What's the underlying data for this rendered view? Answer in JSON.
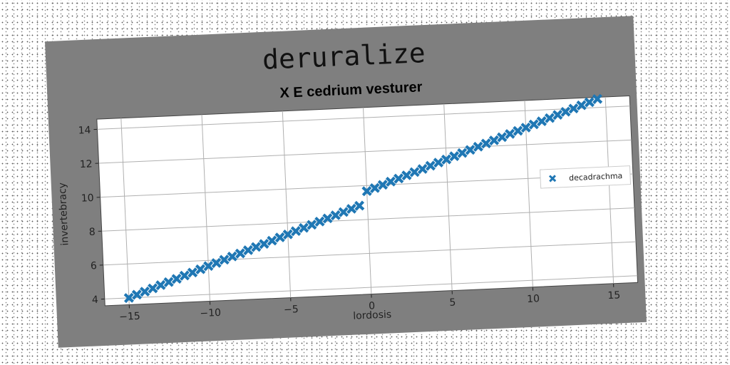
{
  "figure": {
    "suptitle": "deruralize",
    "background_color": "#7f7f7f",
    "plot_background_color": "#ffffff"
  },
  "chart_data": {
    "type": "scatter",
    "title": "X E cedrium vesturer",
    "xlabel": "lordosis",
    "ylabel": "invertebracy",
    "xlim": [
      -16.5,
      16.5
    ],
    "ylim": [
      3.6,
      14.6
    ],
    "xticks": [
      -15,
      -10,
      -5,
      0,
      5,
      10,
      15
    ],
    "xtick_labels": [
      "−15",
      "−10",
      "−5",
      "0",
      "5",
      "10",
      "15"
    ],
    "yticks": [
      4,
      6,
      8,
      10,
      12,
      14
    ],
    "ytick_labels": [
      "4",
      "6",
      "8",
      "10",
      "12",
      "14"
    ],
    "grid": true,
    "legend_position": "center-right",
    "marker": "X",
    "series": [
      {
        "name": "decadrachma",
        "color": "#1f77b4",
        "points_note": "",
        "x": [
          -15.0,
          -14.5,
          -14.0,
          -13.5,
          -13.0,
          -12.5,
          -12.0,
          -11.5,
          -11.0,
          -10.5,
          -10.0,
          -9.5,
          -9.0,
          -8.5,
          -8.0,
          -7.5,
          -7.0,
          -6.5,
          -6.0,
          -5.5,
          -5.0,
          -4.5,
          -4.0,
          -3.5,
          -3.0,
          -2.5,
          -2.0,
          -1.5,
          -1.0,
          -0.5,
          0.0,
          0.5,
          1.0,
          1.5,
          2.0,
          2.5,
          3.0,
          3.5,
          4.0,
          4.5,
          5.0,
          5.5,
          6.0,
          6.5,
          7.0,
          7.5,
          8.0,
          8.5,
          9.0,
          9.5,
          10.0,
          10.5,
          11.0,
          11.5,
          12.0,
          12.5,
          13.0,
          13.5,
          14.0,
          14.5
        ],
        "y": [
          4.0,
          4.17,
          4.33,
          4.5,
          4.67,
          4.83,
          5.0,
          5.17,
          5.33,
          5.5,
          5.67,
          5.83,
          6.0,
          6.17,
          6.33,
          6.5,
          6.67,
          6.83,
          7.0,
          7.17,
          7.33,
          7.5,
          7.67,
          7.83,
          8.0,
          8.17,
          8.33,
          8.5,
          8.67,
          8.83,
          9.67,
          9.83,
          10.0,
          10.17,
          10.33,
          10.5,
          10.67,
          10.83,
          11.0,
          11.17,
          11.33,
          11.5,
          11.67,
          11.83,
          12.0,
          12.17,
          12.33,
          12.5,
          12.67,
          12.83,
          13.0,
          13.17,
          13.33,
          13.5,
          13.67,
          13.83,
          14.0,
          14.17,
          14.33,
          14.5
        ]
      }
    ]
  }
}
